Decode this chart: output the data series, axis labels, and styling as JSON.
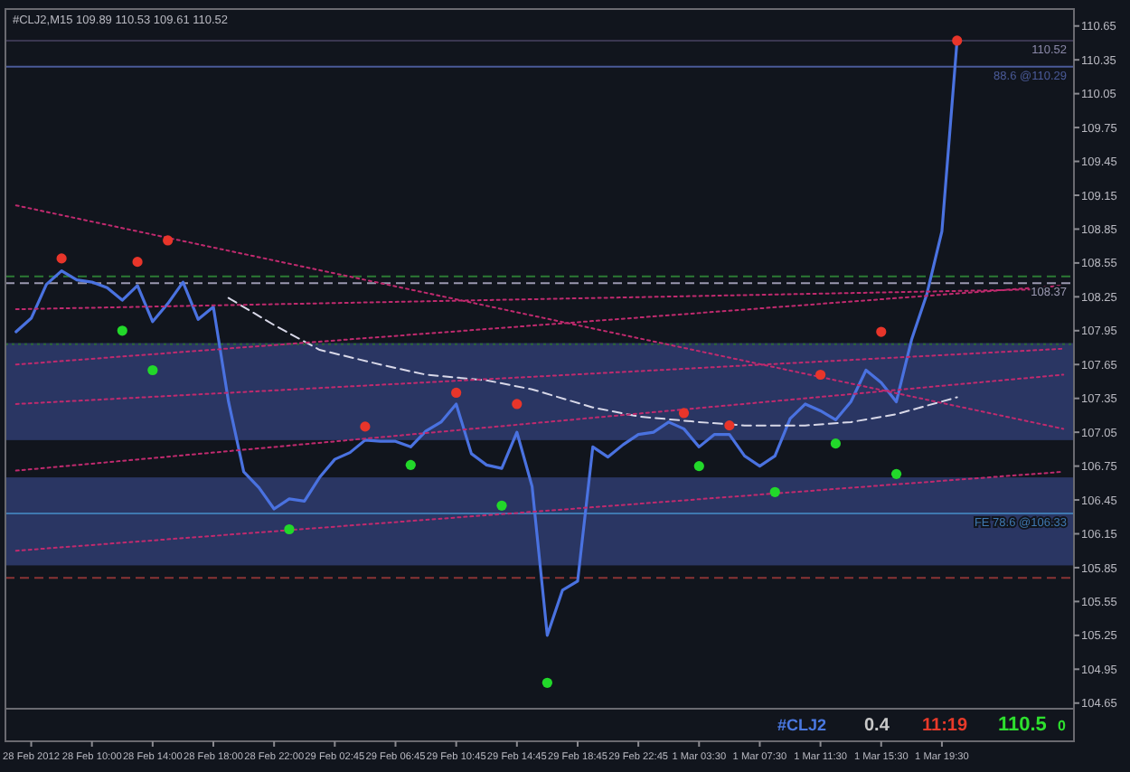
{
  "chart_data": {
    "type": "line",
    "title": "#CLJ2,M15 109.89 110.53 109.61 110.52",
    "categories": [
      null,
      "28 Feb 2012",
      null,
      null,
      null,
      "28 Feb 10:00",
      null,
      null,
      null,
      "28 Feb 14:00",
      null,
      null,
      null,
      "28 Feb 18:00",
      null,
      null,
      null,
      "28 Feb 22:00",
      null,
      null,
      null,
      "29 Feb 02:45",
      null,
      null,
      null,
      "29 Feb 06:45",
      null,
      null,
      null,
      "29 Feb 10:45",
      null,
      null,
      null,
      "29 Feb 14:45",
      null,
      null,
      null,
      "29 Feb 18:45",
      null,
      null,
      null,
      "29 Feb 22:45",
      null,
      null,
      null,
      "1 Mar 03:30",
      null,
      null,
      null,
      "1 Mar 07:30",
      null,
      null,
      null,
      "1 Mar 11:30",
      null,
      null,
      null,
      "1 Mar 15:30",
      null,
      null,
      null,
      "1 Mar 19:30",
      null,
      null,
      null,
      null,
      null,
      null,
      null,
      null
    ],
    "ylim": [
      104.6,
      110.8
    ],
    "yticks": [
      104.65,
      104.95,
      105.25,
      105.55,
      105.85,
      106.15,
      106.45,
      106.75,
      107.05,
      107.35,
      107.65,
      107.95,
      108.25,
      108.55,
      108.85,
      109.15,
      109.45,
      109.75,
      110.05,
      110.35,
      110.65
    ],
    "grid": false,
    "series": [
      {
        "type": "line",
        "color": "#4a72e0",
        "values": [
          107.94,
          108.06,
          108.36,
          108.48,
          108.4,
          108.38,
          108.33,
          108.22,
          108.35,
          108.03,
          108.19,
          108.38,
          108.05,
          108.16,
          107.32,
          106.7,
          106.56,
          106.37,
          106.46,
          106.44,
          106.65,
          106.81,
          106.87,
          106.98,
          106.97,
          106.97,
          106.92,
          107.06,
          107.14,
          107.3,
          106.86,
          106.76,
          106.73,
          107.05,
          106.57,
          105.25,
          105.65,
          105.73,
          106.92,
          106.83,
          106.94,
          107.03,
          107.05,
          107.14,
          107.08,
          106.92,
          107.03,
          107.03,
          106.84,
          106.75,
          106.84,
          107.17,
          107.3,
          107.24,
          107.16,
          107.32,
          107.6,
          107.49,
          107.32,
          107.87,
          108.27,
          108.83,
          110.52,
          null,
          null,
          null,
          null,
          null,
          null,
          null
        ]
      },
      {
        "type": "line",
        "color": "#d8d8e8",
        "line_style": "dashed",
        "values": [
          null,
          null,
          null,
          null,
          null,
          null,
          null,
          null,
          null,
          null,
          null,
          null,
          null,
          null,
          108.24,
          null,
          null,
          108.0,
          null,
          null,
          107.78,
          null,
          null,
          null,
          107.65,
          null,
          null,
          107.56,
          null,
          null,
          null,
          107.51,
          null,
          null,
          107.43,
          null,
          null,
          null,
          107.27,
          null,
          null,
          107.19,
          null,
          null,
          null,
          107.14,
          null,
          null,
          107.11,
          null,
          null,
          null,
          107.11,
          null,
          null,
          107.14,
          null,
          null,
          107.21,
          null,
          null,
          null,
          107.36,
          null,
          null,
          null,
          null,
          null,
          null,
          null
        ]
      },
      {
        "type": "line",
        "color": "#c02a6e",
        "line_style": "dotted",
        "values": [
          109.06,
          null,
          null,
          null,
          null,
          null,
          null,
          null,
          null,
          null,
          null,
          null,
          null,
          null,
          null,
          null,
          null,
          null,
          null,
          null,
          null,
          null,
          null,
          null,
          null,
          null,
          null,
          null,
          null,
          null,
          null,
          null,
          null,
          null,
          null,
          null,
          null,
          null,
          null,
          null,
          null,
          null,
          null,
          null,
          null,
          null,
          null,
          null,
          null,
          null,
          null,
          null,
          null,
          null,
          null,
          null,
          null,
          null,
          null,
          null,
          null,
          null,
          null,
          null,
          null,
          null,
          null,
          null,
          null,
          107.08
        ]
      },
      {
        "type": "line",
        "color": "#c02a6e",
        "line_style": "dotted",
        "values": [
          107.65,
          null,
          null,
          null,
          null,
          null,
          null,
          null,
          null,
          null,
          null,
          null,
          null,
          null,
          null,
          null,
          null,
          null,
          null,
          null,
          null,
          null,
          null,
          null,
          null,
          null,
          null,
          null,
          null,
          null,
          null,
          null,
          null,
          null,
          null,
          null,
          null,
          null,
          null,
          null,
          null,
          null,
          null,
          null,
          null,
          null,
          null,
          null,
          null,
          null,
          null,
          null,
          null,
          null,
          null,
          null,
          null,
          null,
          null,
          null,
          null,
          null,
          null,
          null,
          null,
          null,
          null,
          null,
          null,
          108.35
        ]
      },
      {
        "type": "line",
        "color": "#c02a6e",
        "line_style": "dotted",
        "values": [
          107.3,
          null,
          null,
          null,
          null,
          null,
          null,
          null,
          null,
          null,
          null,
          null,
          null,
          null,
          null,
          null,
          null,
          null,
          null,
          null,
          null,
          null,
          null,
          null,
          null,
          null,
          null,
          null,
          null,
          null,
          null,
          null,
          null,
          null,
          null,
          null,
          null,
          null,
          null,
          null,
          null,
          null,
          null,
          null,
          null,
          null,
          null,
          null,
          null,
          null,
          null,
          null,
          null,
          null,
          null,
          null,
          null,
          null,
          null,
          null,
          null,
          null,
          null,
          null,
          null,
          null,
          null,
          null,
          null,
          107.79
        ]
      },
      {
        "type": "line",
        "color": "#c02a6e",
        "line_style": "dotted",
        "values": [
          106.71,
          null,
          null,
          null,
          null,
          null,
          null,
          null,
          null,
          null,
          null,
          null,
          null,
          null,
          null,
          null,
          null,
          null,
          null,
          null,
          null,
          null,
          null,
          null,
          null,
          null,
          null,
          null,
          null,
          null,
          null,
          null,
          null,
          null,
          null,
          null,
          null,
          null,
          null,
          null,
          null,
          null,
          null,
          null,
          null,
          null,
          null,
          null,
          null,
          null,
          null,
          null,
          null,
          null,
          null,
          null,
          null,
          null,
          null,
          null,
          null,
          null,
          null,
          null,
          null,
          null,
          null,
          null,
          null,
          107.56
        ]
      },
      {
        "type": "line",
        "color": "#c02a6e",
        "line_style": "dotted",
        "values": [
          106.0,
          null,
          null,
          null,
          null,
          null,
          null,
          null,
          null,
          null,
          null,
          null,
          null,
          null,
          null,
          null,
          null,
          null,
          null,
          null,
          null,
          null,
          null,
          null,
          null,
          null,
          null,
          null,
          null,
          null,
          null,
          null,
          null,
          null,
          null,
          null,
          null,
          null,
          null,
          null,
          null,
          null,
          null,
          null,
          null,
          null,
          null,
          null,
          null,
          null,
          null,
          null,
          null,
          null,
          null,
          null,
          null,
          null,
          null,
          null,
          null,
          null,
          null,
          null,
          null,
          null,
          null,
          null,
          null,
          106.7
        ]
      },
      {
        "type": "line",
        "color": "#c02a6e",
        "line_style": "dotted",
        "values": [
          108.14,
          null,
          null,
          null,
          null,
          null,
          null,
          null,
          null,
          null,
          null,
          null,
          null,
          null,
          null,
          null,
          null,
          null,
          null,
          null,
          null,
          null,
          null,
          null,
          null,
          null,
          null,
          null,
          null,
          null,
          null,
          null,
          null,
          null,
          null,
          null,
          null,
          null,
          null,
          null,
          null,
          null,
          null,
          null,
          null,
          null,
          null,
          null,
          null,
          null,
          null,
          null,
          null,
          null,
          null,
          null,
          null,
          null,
          null,
          null,
          null,
          null,
          null,
          null,
          null,
          null,
          null,
          null,
          null,
          108.32
        ]
      },
      {
        "type": "scatter",
        "color": "#e8352a",
        "marker": "circle",
        "values": [
          null,
          null,
          null,
          108.59,
          null,
          null,
          null,
          null,
          108.56,
          null,
          108.75,
          null,
          null,
          null,
          null,
          null,
          null,
          null,
          null,
          null,
          null,
          null,
          null,
          107.1,
          null,
          null,
          null,
          null,
          null,
          107.4,
          null,
          null,
          null,
          107.3,
          null,
          null,
          null,
          null,
          null,
          null,
          null,
          null,
          null,
          null,
          107.22,
          null,
          null,
          107.11,
          null,
          null,
          null,
          null,
          null,
          107.56,
          null,
          null,
          null,
          107.94,
          null,
          null,
          null,
          null,
          110.52,
          null,
          null,
          null,
          null,
          null,
          null,
          null
        ]
      },
      {
        "type": "scatter",
        "color": "#22d82a",
        "marker": "circle",
        "values": [
          null,
          null,
          null,
          null,
          null,
          null,
          null,
          107.95,
          null,
          107.6,
          null,
          null,
          null,
          null,
          null,
          null,
          null,
          null,
          106.19,
          null,
          null,
          null,
          null,
          null,
          null,
          null,
          106.76,
          null,
          null,
          null,
          null,
          null,
          106.4,
          null,
          null,
          104.83,
          null,
          null,
          null,
          null,
          null,
          null,
          null,
          null,
          null,
          106.75,
          null,
          null,
          null,
          null,
          106.52,
          null,
          null,
          null,
          106.95,
          null,
          null,
          null,
          106.68,
          null,
          null,
          null,
          null,
          null,
          null,
          null,
          null,
          null,
          null,
          null
        ]
      }
    ],
    "bands": [
      {
        "axis": "y",
        "from": 106.98,
        "to": 107.84,
        "color": "#2a3663"
      },
      {
        "axis": "y",
        "from": 105.87,
        "to": 106.65,
        "color": "#2a3663"
      }
    ],
    "ref_lines": [
      {
        "axis": "y",
        "value": 110.52,
        "label": "110.52",
        "color": "#3a3650",
        "line_style": "solid"
      },
      {
        "axis": "y",
        "value": 110.29,
        "label": "88.6 @110.29",
        "color": "#4a5a98",
        "line_style": "solid"
      },
      {
        "axis": "y",
        "value": 108.43,
        "color": "#2c7a34",
        "line_style": "dashed"
      },
      {
        "axis": "y",
        "value": 108.37,
        "label": "108.37",
        "color": "#9a98b0",
        "line_style": "dashed"
      },
      {
        "axis": "y",
        "value": 107.83,
        "color": "#2c6a34",
        "line_style": "dotted"
      },
      {
        "axis": "y",
        "value": 106.33,
        "label": "FE 78.6 @106.33",
        "color": "#3f78b0",
        "line_style": "solid"
      },
      {
        "axis": "y",
        "value": 105.76,
        "color": "#8a3434",
        "line_style": "dashed"
      }
    ],
    "annotations": [
      "#CLJ2",
      "0.4",
      "11:19",
      "110.5",
      "0"
    ]
  }
}
